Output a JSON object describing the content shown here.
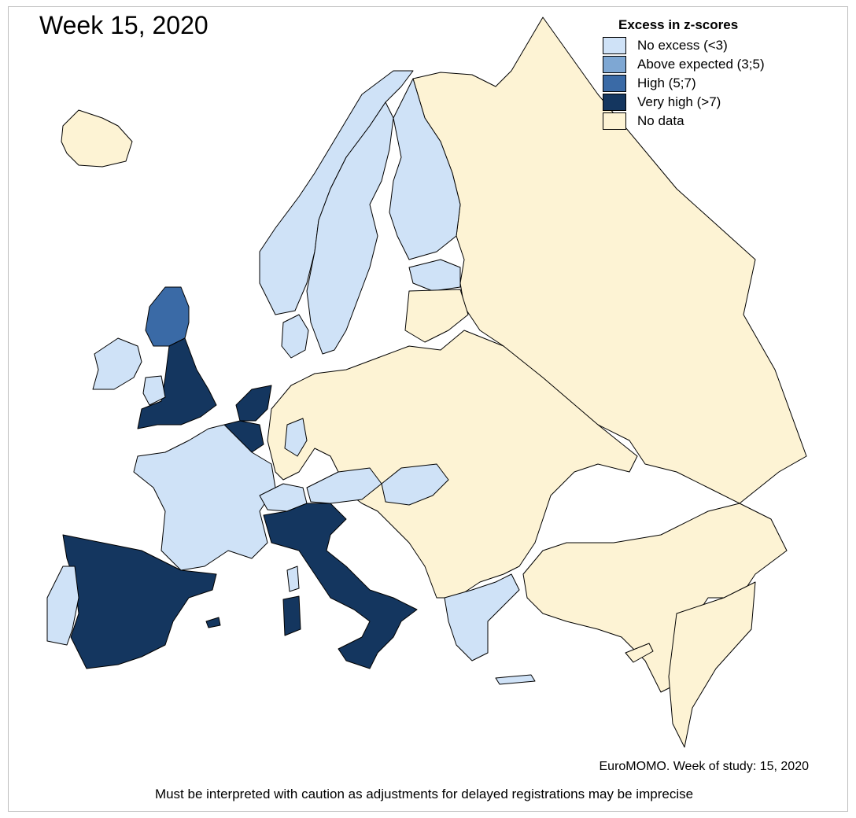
{
  "title": "Week 15, 2020",
  "legend": {
    "title": "Excess in z-scores",
    "items": [
      {
        "label": "No excess (<3)",
        "color": "#cfe2f7"
      },
      {
        "label": "Above expected (3;5)",
        "color": "#7ea7d3"
      },
      {
        "label": "High (5;7)",
        "color": "#3a6aa6"
      },
      {
        "label": "Very high (>7)",
        "color": "#14365f"
      },
      {
        "label": "No data",
        "color": "#fdf3d4"
      }
    ]
  },
  "credit": "EuroMOMO. Week of study: 15, 2020",
  "caution": "Must be interpreted with caution as adjustments for delayed registrations may be imprecise",
  "colors": {
    "no_excess": "#cfe2f7",
    "above_expected": "#7ea7d3",
    "high": "#3a6aa6",
    "very_high": "#14365f",
    "no_data": "#fdf3d4"
  }
}
